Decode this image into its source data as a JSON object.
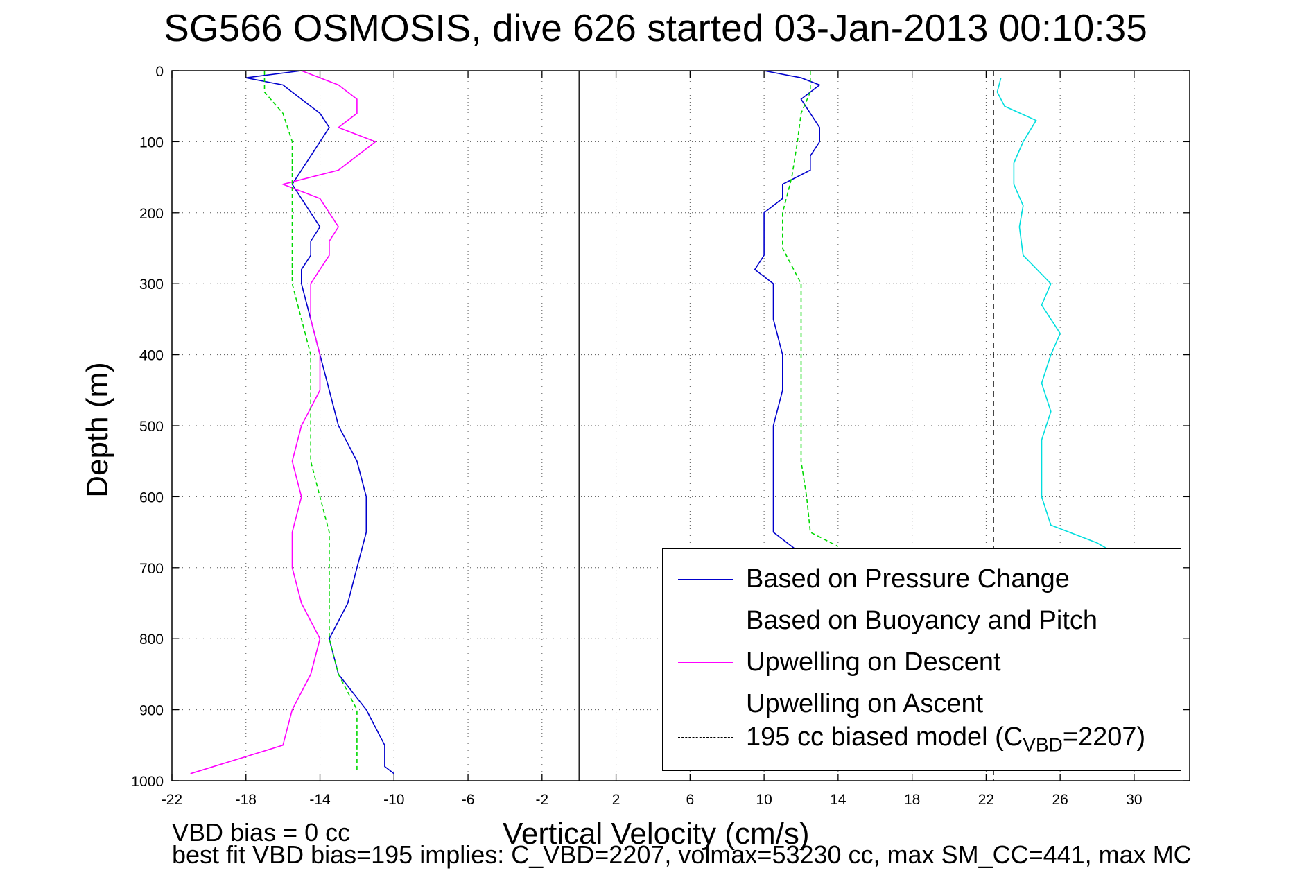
{
  "chart_data": {
    "type": "line",
    "title": "SG566 OSMOSIS, dive 626 started 03-Jan-2013 00:10:35",
    "xlabel": "Vertical Velocity (cm/s)",
    "ylabel": "Depth (m)",
    "xlim": [
      -22,
      33
    ],
    "ylim": [
      0,
      1000
    ],
    "y_reversed": true,
    "xticks": [
      -22,
      -18,
      -14,
      -10,
      -6,
      -2,
      2,
      6,
      10,
      14,
      18,
      22,
      26,
      30
    ],
    "yticks": [
      0,
      100,
      200,
      300,
      400,
      500,
      600,
      700,
      800,
      900,
      1000
    ],
    "grid": true,
    "legend_position": "bottom-right",
    "vertical_lines": [
      {
        "x": 0,
        "style": "solid",
        "color": "#000000"
      },
      {
        "x": 22.4,
        "style": "dashed",
        "color": "#000000"
      }
    ],
    "series": [
      {
        "name": "Based on Pressure Change",
        "color": "#0000cc",
        "style": "solid",
        "depth": [
          0,
          10,
          20,
          40,
          60,
          80,
          100,
          120,
          140,
          160,
          180,
          200,
          220,
          240,
          260,
          280,
          300,
          350,
          400,
          450,
          500,
          550,
          600,
          650,
          700,
          750,
          800,
          850,
          900,
          950,
          980,
          990
        ],
        "values": [
          -15,
          -18,
          -16,
          -15,
          -14,
          -13.5,
          -14,
          -14.5,
          -15,
          -15.5,
          -15,
          -14.5,
          -14,
          -14.5,
          -14.5,
          -15,
          -15,
          -14.5,
          -14,
          -13.5,
          -13,
          -12,
          -11.5,
          -11.5,
          -12,
          -12.5,
          -13.5,
          -13,
          -11.5,
          -10.5,
          -10.5,
          -10
        ]
      },
      {
        "name": "Based on Pressure Change",
        "color": "#0000cc",
        "style": "solid",
        "depth": [
          0,
          10,
          20,
          40,
          60,
          80,
          100,
          120,
          140,
          160,
          180,
          200,
          220,
          240,
          260,
          280,
          300,
          350,
          400,
          450,
          500,
          550,
          600,
          650,
          680
        ],
        "values": [
          10,
          12,
          13,
          12,
          12.5,
          13,
          13,
          12.5,
          12.5,
          11,
          11,
          10,
          10,
          10,
          10,
          9.5,
          10.5,
          10.5,
          11,
          11,
          10.5,
          10.5,
          10.5,
          10.5,
          12
        ]
      },
      {
        "name": "Based on Buoyancy and Pitch",
        "color": "#00dede",
        "style": "solid",
        "depth": [
          10,
          30,
          50,
          70,
          100,
          130,
          160,
          190,
          220,
          260,
          300,
          330,
          370,
          400,
          440,
          480,
          520,
          560,
          600,
          640,
          665,
          680
        ],
        "values": [
          22.8,
          22.6,
          23,
          24.7,
          24,
          23.5,
          23.5,
          24,
          23.8,
          24,
          25.5,
          25,
          26,
          25.5,
          25,
          25.5,
          25,
          25,
          25,
          25.5,
          28,
          29
        ]
      },
      {
        "name": "Upwelling on Descent",
        "color": "#ff00ff",
        "style": "solid",
        "depth": [
          0,
          20,
          40,
          60,
          80,
          100,
          120,
          140,
          160,
          180,
          200,
          220,
          240,
          260,
          280,
          300,
          350,
          400,
          450,
          500,
          550,
          600,
          650,
          700,
          750,
          800,
          850,
          900,
          950,
          990
        ],
        "values": [
          -15,
          -13,
          -12,
          -12,
          -13,
          -11,
          -12,
          -13,
          -16,
          -14,
          -13.5,
          -13,
          -13.5,
          -13.5,
          -14,
          -14.5,
          -14.5,
          -14,
          -14,
          -15,
          -15.5,
          -15,
          -15.5,
          -15.5,
          -15,
          -14,
          -14.5,
          -15.5,
          -16,
          -21
        ]
      },
      {
        "name": "Upwelling on Ascent",
        "color": "#00d800",
        "style": "dashed",
        "depth": [
          0,
          30,
          60,
          100,
          150,
          200,
          250,
          300,
          350,
          400,
          450,
          500,
          550,
          600,
          650,
          700,
          750,
          800,
          850,
          900,
          950,
          985
        ],
        "values": [
          -17,
          -17,
          -16,
          -15.5,
          -15.5,
          -15.5,
          -15.5,
          -15.5,
          -15,
          -14.5,
          -14.5,
          -14.5,
          -14.5,
          -14,
          -13.5,
          -13.5,
          -13.5,
          -13.5,
          -13,
          -12,
          -12,
          -12
        ]
      },
      {
        "name": "Upwelling on Ascent",
        "color": "#00d800",
        "style": "dashed",
        "depth": [
          0,
          30,
          60,
          100,
          150,
          200,
          250,
          300,
          350,
          400,
          450,
          500,
          550,
          600,
          650,
          670
        ],
        "values": [
          12.5,
          12.5,
          12,
          11.8,
          11.5,
          11,
          11,
          12,
          12,
          12,
          12,
          12,
          12,
          12.3,
          12.5,
          14
        ]
      }
    ]
  },
  "legend": [
    {
      "label": "Based on Pressure Change",
      "color": "#0000cc",
      "style": "solid"
    },
    {
      "label": "Based on Buoyancy and Pitch",
      "color": "#00dede",
      "style": "solid"
    },
    {
      "label": "Upwelling on Descent",
      "color": "#ff00ff",
      "style": "solid"
    },
    {
      "label": "Upwelling on Ascent",
      "color": "#00d800",
      "style": "dashed"
    },
    {
      "label": "195 cc biased model (C",
      "sub": "VBD",
      "tail": "=2207)",
      "color": "#000000",
      "style": "dashed"
    }
  ],
  "notes": {
    "line1": "VBD bias = 0 cc",
    "line2": "best fit VBD bias=195 implies: C_VBD=2207, volmax=53230 cc, max SM_CC=441, max MC"
  }
}
